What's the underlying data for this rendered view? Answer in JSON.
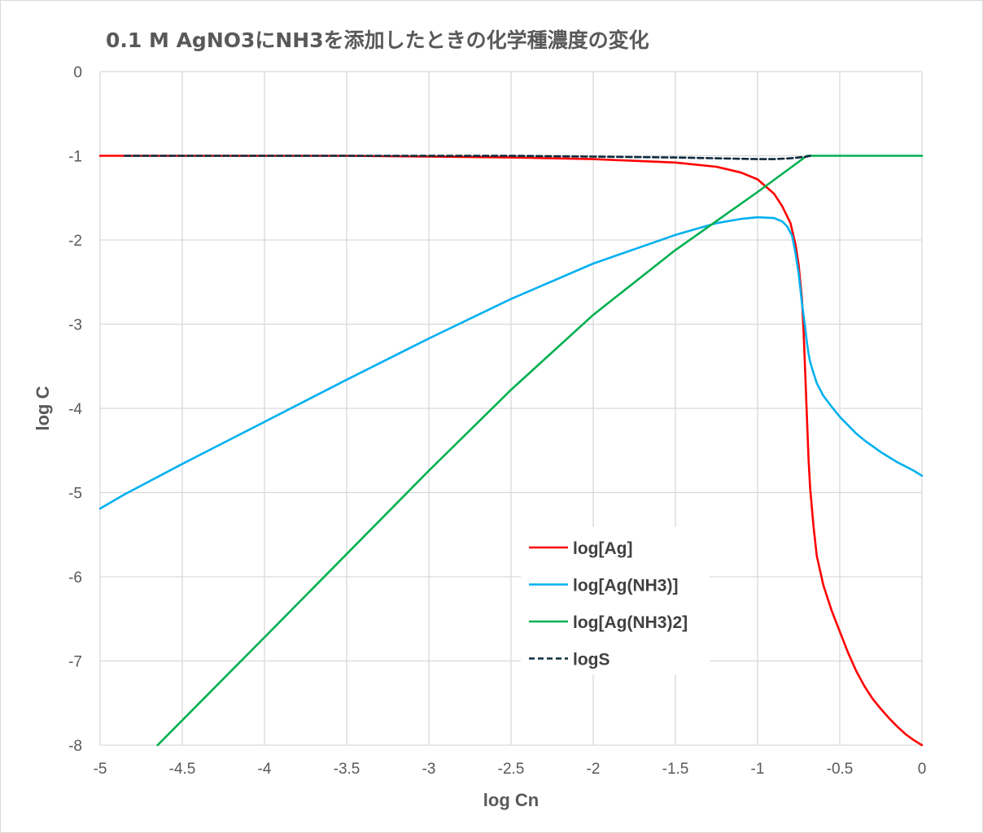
{
  "chart_data": {
    "type": "line",
    "title": "0.1 M AgNO3にNH3を添加したときの化学種濃度の変化",
    "xlabel": "log Cn",
    "ylabel": "log C",
    "xlim": [
      -5,
      0
    ],
    "ylim": [
      -8,
      0
    ],
    "xticks": [
      -5,
      -4.5,
      -4,
      -3.5,
      -3,
      -2.5,
      -2,
      -1.5,
      -1,
      -0.5,
      0
    ],
    "yticks": [
      0,
      -1,
      -2,
      -3,
      -4,
      -5,
      -6,
      -7,
      -8
    ],
    "grid": true,
    "legend_position": "lower-center-right",
    "series": [
      {
        "name": "log[Ag]",
        "color": "#ff0000",
        "dash": "solid",
        "x": [
          -5,
          -4.5,
          -4,
          -3.5,
          -3,
          -2.5,
          -2,
          -1.5,
          -1.25,
          -1.1,
          -1,
          -0.9,
          -0.85,
          -0.8,
          -0.77,
          -0.75,
          -0.73,
          -0.72,
          -0.71,
          -0.7,
          -0.69,
          -0.68,
          -0.66,
          -0.64,
          -0.6,
          -0.55,
          -0.5,
          -0.45,
          -0.4,
          -0.35,
          -0.3,
          -0.25,
          -0.2,
          -0.15,
          -0.1,
          -0.05,
          0
        ],
        "y": [
          -1.0,
          -1.0,
          -1.0,
          -1.0,
          -1.01,
          -1.02,
          -1.04,
          -1.08,
          -1.13,
          -1.2,
          -1.28,
          -1.45,
          -1.6,
          -1.8,
          -2.05,
          -2.3,
          -2.7,
          -3.1,
          -3.6,
          -4.1,
          -4.6,
          -4.95,
          -5.4,
          -5.75,
          -6.1,
          -6.4,
          -6.65,
          -6.9,
          -7.12,
          -7.3,
          -7.45,
          -7.57,
          -7.68,
          -7.78,
          -7.87,
          -7.94,
          -8.0
        ]
      },
      {
        "name": "log[Ag(NH3)]",
        "color": "#00b0f0",
        "dash": "solid",
        "x": [
          -5,
          -4.85,
          -4.5,
          -4,
          -3.5,
          -3,
          -2.5,
          -2,
          -1.5,
          -1.25,
          -1.1,
          -1,
          -0.9,
          -0.85,
          -0.82,
          -0.79,
          -0.77,
          -0.75,
          -0.73,
          -0.71,
          -0.7,
          -0.69,
          -0.68,
          -0.66,
          -0.64,
          -0.6,
          -0.55,
          -0.5,
          -0.45,
          -0.4,
          -0.35,
          -0.3,
          -0.25,
          -0.2,
          -0.15,
          -0.1,
          -0.05,
          0
        ],
        "y": [
          -5.19,
          -5.02,
          -4.66,
          -4.16,
          -3.66,
          -3.17,
          -2.7,
          -2.28,
          -1.94,
          -1.8,
          -1.75,
          -1.73,
          -1.74,
          -1.78,
          -1.84,
          -1.95,
          -2.15,
          -2.4,
          -2.75,
          -3.05,
          -3.22,
          -3.35,
          -3.45,
          -3.58,
          -3.7,
          -3.85,
          -3.98,
          -4.1,
          -4.2,
          -4.3,
          -4.38,
          -4.45,
          -4.52,
          -4.58,
          -4.64,
          -4.69,
          -4.74,
          -4.8
        ]
      },
      {
        "name": "log[Ag(NH3)2]",
        "color": "#00b050",
        "dash": "solid",
        "x": [
          -4.65,
          -4,
          -3.5,
          -3,
          -2.5,
          -2,
          -1.5,
          -1,
          -0.7,
          -0.5,
          0
        ],
        "y": [
          -8.0,
          -6.72,
          -5.73,
          -4.74,
          -3.78,
          -2.89,
          -2.12,
          -1.43,
          -1.0,
          -1.0,
          -1.0
        ]
      },
      {
        "name": "logS",
        "color": "#0d2a3d",
        "dash": "dashed",
        "x": [
          -4.85,
          -4,
          -3,
          -2.5,
          -2,
          -1.5,
          -1.25,
          -1,
          -0.9,
          -0.8,
          -0.75,
          -0.7,
          -0.68
        ],
        "y": [
          -1.0,
          -1.0,
          -1.0,
          -1.0,
          -1.01,
          -1.02,
          -1.03,
          -1.04,
          -1.04,
          -1.03,
          -1.02,
          -1.01,
          -1.0
        ]
      }
    ]
  }
}
